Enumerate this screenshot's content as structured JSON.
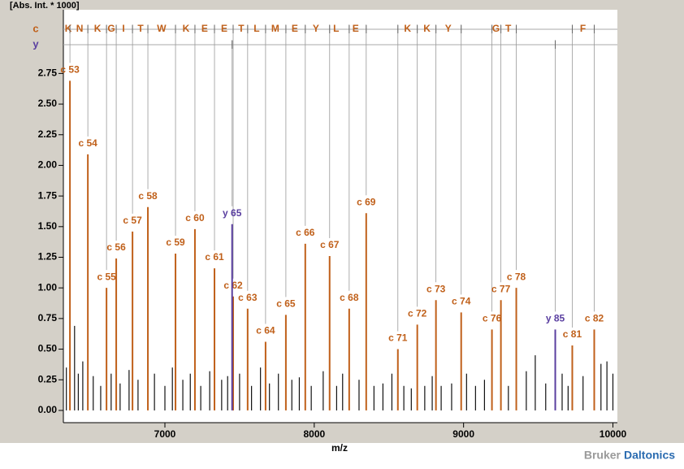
{
  "chart_data": {
    "type": "spectrum",
    "y_axis_label": "[Abs. Int. * 1000]",
    "x_axis_label": "m/z",
    "brand": [
      "Bruker",
      "Daltonics"
    ],
    "xlim": [
      6320,
      10030
    ],
    "ylim": [
      -0.1,
      3.27
    ],
    "xticks": [
      7000,
      8000,
      9000,
      10000
    ],
    "yticks": [
      {
        "value": 0,
        "label": "0.00"
      },
      {
        "value": 0.25,
        "label": "0.25"
      },
      {
        "value": 0.5,
        "label": "0.50"
      },
      {
        "value": 0.75,
        "label": "0.75"
      },
      {
        "value": 1,
        "label": "1.00"
      },
      {
        "value": 1.25,
        "label": "1.25"
      },
      {
        "value": 1.5,
        "label": "1.50"
      },
      {
        "value": 1.75,
        "label": "1.75"
      },
      {
        "value": 2,
        "label": "2.00"
      },
      {
        "value": 2.25,
        "label": "2.25"
      },
      {
        "value": 2.5,
        "label": "2.50"
      },
      {
        "value": 2.75,
        "label": "2.75"
      }
    ],
    "series": [
      {
        "name": "c",
        "color": "#c0601a",
        "x": [
          6364,
          6484,
          6609,
          6674,
          6783,
          6886,
          7071,
          7201,
          7332,
          7457,
          7554,
          7674,
          7810,
          7940,
          8103,
          8234,
          8348,
          8560,
          8690,
          8815,
          8984,
          9190,
          9250,
          9353,
          9728,
          9875
        ],
        "values": [
          2.69,
          2.09,
          1.0,
          1.24,
          1.46,
          1.66,
          1.28,
          1.48,
          1.16,
          0.93,
          0.83,
          0.56,
          0.78,
          1.36,
          1.26,
          0.83,
          1.61,
          0.5,
          0.7,
          0.9,
          0.8,
          0.66,
          0.9,
          1.0,
          0.53,
          0.66
        ],
        "labels": [
          "c 53",
          "c 54",
          "c 55",
          "c 56",
          "c 57",
          "c 58",
          "c 59",
          "c 60",
          "c 61",
          "c 62",
          "c 63",
          "c 64",
          "c 65",
          "c 66",
          "c 67",
          "c 68",
          "c 69",
          "c 71",
          "c 72",
          "c 73",
          "c 74",
          "c 76",
          "c 77",
          "c 78",
          "c 81",
          "c 82"
        ]
      },
      {
        "name": "y",
        "color": "#5a3fa0",
        "x": [
          7450,
          9614
        ],
        "values": [
          1.52,
          0.66
        ],
        "labels": [
          "y 65",
          "y 85"
        ]
      },
      {
        "color": "#111111",
        "x": [
          6340,
          6395,
          6420,
          6450,
          6520,
          6570,
          6640,
          6700,
          6760,
          6820,
          6930,
          7000,
          7050,
          7120,
          7170,
          7240,
          7300,
          7380,
          7420,
          7500,
          7580,
          7640,
          7700,
          7760,
          7850,
          7900,
          7980,
          8060,
          8150,
          8190,
          8300,
          8400,
          8460,
          8520,
          8600,
          8650,
          8740,
          8790,
          8850,
          8920,
          9020,
          9080,
          9140,
          9300,
          9420,
          9480,
          9550,
          9660,
          9700,
          9800,
          9920,
          9960,
          10000
        ],
        "values": [
          0.35,
          0.69,
          0.3,
          0.4,
          0.28,
          0.2,
          0.3,
          0.22,
          0.33,
          0.25,
          0.3,
          0.2,
          0.35,
          0.25,
          0.3,
          0.2,
          0.32,
          0.25,
          0.28,
          0.3,
          0.2,
          0.35,
          0.22,
          0.3,
          0.25,
          0.27,
          0.2,
          0.32,
          0.2,
          0.3,
          0.25,
          0.2,
          0.22,
          0.3,
          0.2,
          0.18,
          0.2,
          0.28,
          0.2,
          0.22,
          0.3,
          0.2,
          0.25,
          0.2,
          0.32,
          0.45,
          0.22,
          0.3,
          0.2,
          0.28,
          0.38,
          0.4,
          0.3
        ]
      }
    ],
    "ladder": {
      "residues": [
        "K",
        "N",
        "K",
        "G",
        "I",
        "T",
        "W",
        "K",
        "E",
        "E",
        "T",
        "L",
        "M",
        "E",
        "Y",
        "L",
        "E",
        "K",
        "K",
        "Y",
        "G",
        "T",
        "F"
      ],
      "x": [
        6353,
        6429,
        6549,
        6641,
        6723,
        6837,
        6978,
        7141,
        7266,
        7397,
        7511,
        7614,
        7739,
        7870,
        8011,
        8147,
        8277,
        8625,
        8755,
        8897,
        9217,
        9299,
        9799
      ]
    }
  }
}
